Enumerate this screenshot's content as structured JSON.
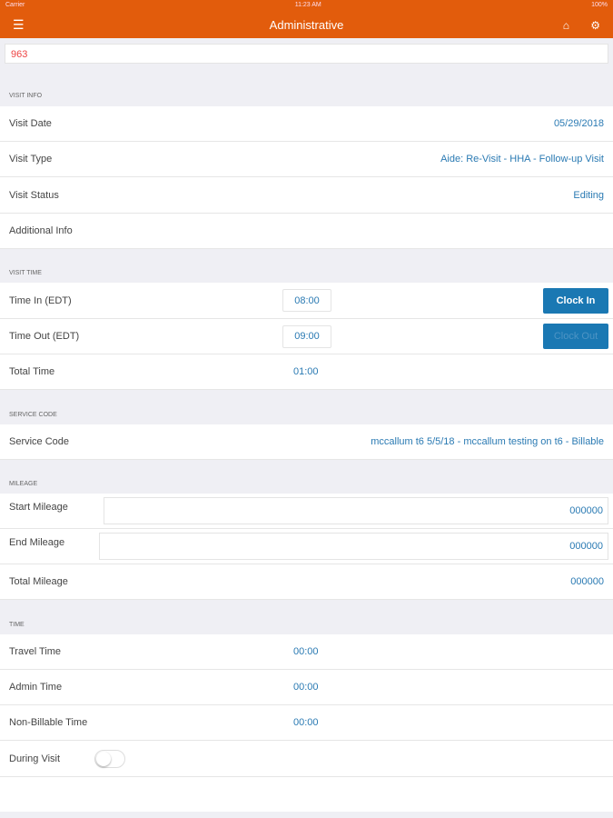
{
  "status": {
    "carrier": "Carrier",
    "time": "11:23 AM",
    "battery": "100%"
  },
  "header": {
    "title": "Administrative",
    "menu_icon": "hamburger-icon",
    "home_icon": "home-icon",
    "settings_icon": "gear-icon"
  },
  "record_id": "963",
  "visit_info": {
    "title": "VISIT INFO",
    "rows": [
      {
        "label": "Visit Date",
        "value": "05/29/2018"
      },
      {
        "label": "Visit Type",
        "value": "Aide: Re-Visit - HHA - Follow-up Visit"
      },
      {
        "label": "Visit Status",
        "value": "Editing"
      },
      {
        "label": "Additional Info",
        "value": ""
      }
    ]
  },
  "visit_time": {
    "title": "VISIT TIME",
    "time_in_label": "Time In (EDT)",
    "time_in": "08:00",
    "clock_in": "Clock In",
    "time_out_label": "Time Out (EDT)",
    "time_out": "09:00",
    "clock_out": "Clock Out",
    "total_label": "Total Time",
    "total": "01:00"
  },
  "service_code": {
    "title": "SERVICE CODE",
    "label": "Service Code",
    "value": "mccallum t6 5/5/18 - mccallum testing on t6 - Billable"
  },
  "mileage": {
    "title": "MILEAGE",
    "start_label": "Start Mileage",
    "start": "000000",
    "end_label": "End Mileage",
    "end": "000000",
    "total_label": "Total Mileage",
    "total": "000000"
  },
  "time": {
    "title": "TIME",
    "travel_label": "Travel Time",
    "travel": "00:00",
    "admin_label": "Admin Time",
    "admin": "00:00",
    "nonbill_label": "Non-Billable Time",
    "nonbill": "00:00",
    "during_label": "During Visit",
    "during_on": false
  },
  "colors": {
    "accent": "#e25c0c",
    "link": "#2a7ab3",
    "button": "#1a78b3"
  }
}
